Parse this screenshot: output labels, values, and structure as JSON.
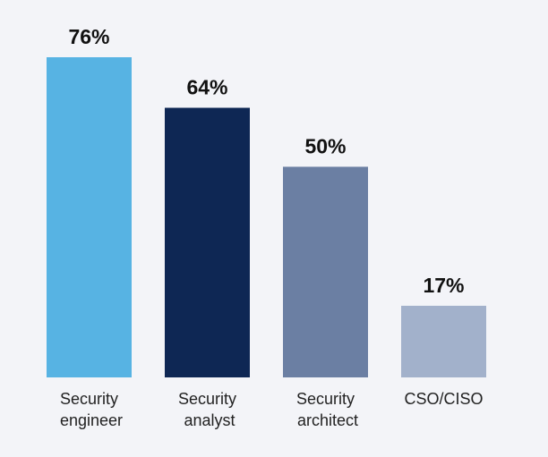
{
  "chart_data": {
    "type": "bar",
    "categories": [
      "Security engineer",
      "Security analyst",
      "Security architect",
      "CSO/CISO"
    ],
    "values": [
      76,
      64,
      50,
      17
    ],
    "value_labels": [
      "76%",
      "64%",
      "50%",
      "17%"
    ],
    "colors": [
      "#57b3e3",
      "#0e2754",
      "#6b7fa3",
      "#a2b1cb"
    ]
  }
}
